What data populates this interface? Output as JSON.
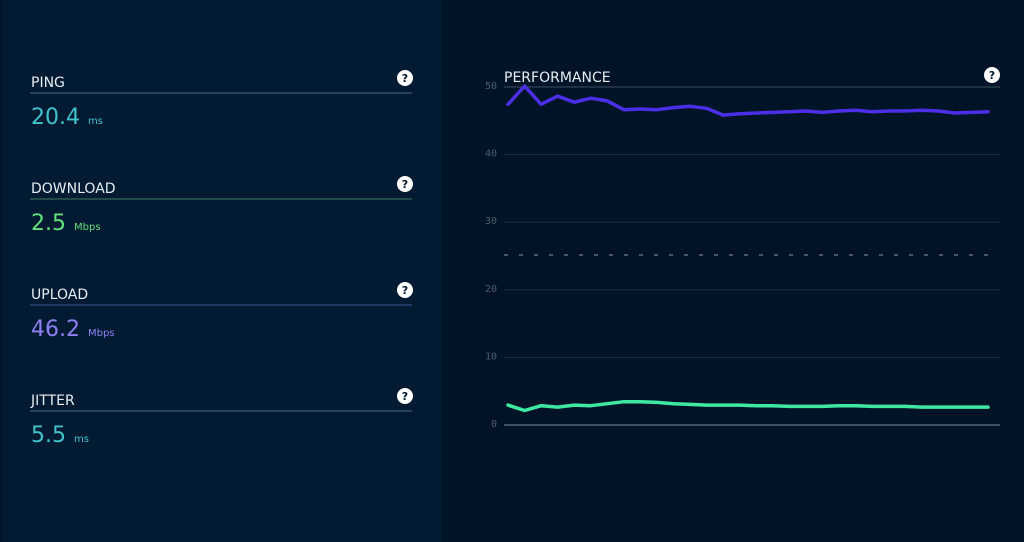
{
  "metrics": [
    {
      "label": "PING",
      "value": "20.4",
      "unit": "ms",
      "color": "#3fc3cc",
      "rule": "#4f6f80"
    },
    {
      "label": "DOWNLOAD",
      "value": "2.5",
      "unit": "Mbps",
      "color": "#5fe07c",
      "rule": "#3f7a62"
    },
    {
      "label": "UPLOAD",
      "value": "46.2",
      "unit": "Mbps",
      "color": "#8e80f2",
      "rule": "#3d5b9a"
    },
    {
      "label": "JITTER",
      "value": "5.5",
      "unit": "ms",
      "color": "#3fc3cc",
      "rule": "#4f6f80"
    }
  ],
  "help_icon": "?",
  "chart_data": {
    "type": "line",
    "title": "PERFORMANCE",
    "series": [
      {
        "color": "#4a2fe6",
        "values": [
          47.3,
          50,
          47.3,
          48.5,
          47.6,
          48.2,
          47.8,
          46.5,
          46.6,
          46.5,
          46.8,
          47.0,
          46.7,
          45.7,
          45.9,
          46.0,
          46.1,
          46.2,
          46.3,
          46.1,
          46.3,
          46.4,
          46.2,
          46.3,
          46.3,
          46.4,
          46.3,
          46.0,
          46.1,
          46.2
        ]
      },
      {
        "color": "#3ee8a2",
        "values": [
          2.8,
          2.0,
          2.7,
          2.5,
          2.8,
          2.7,
          3.0,
          3.3,
          3.3,
          3.2,
          3.0,
          2.9,
          2.8,
          2.8,
          2.8,
          2.7,
          2.7,
          2.6,
          2.6,
          2.6,
          2.7,
          2.7,
          2.6,
          2.6,
          2.6,
          2.5,
          2.5,
          2.5,
          2.5,
          2.5
        ]
      }
    ],
    "reference_line": 25,
    "ylim": [
      0,
      50
    ],
    "yticks": [
      0,
      10,
      20,
      30,
      40,
      50
    ],
    "grid": true
  }
}
